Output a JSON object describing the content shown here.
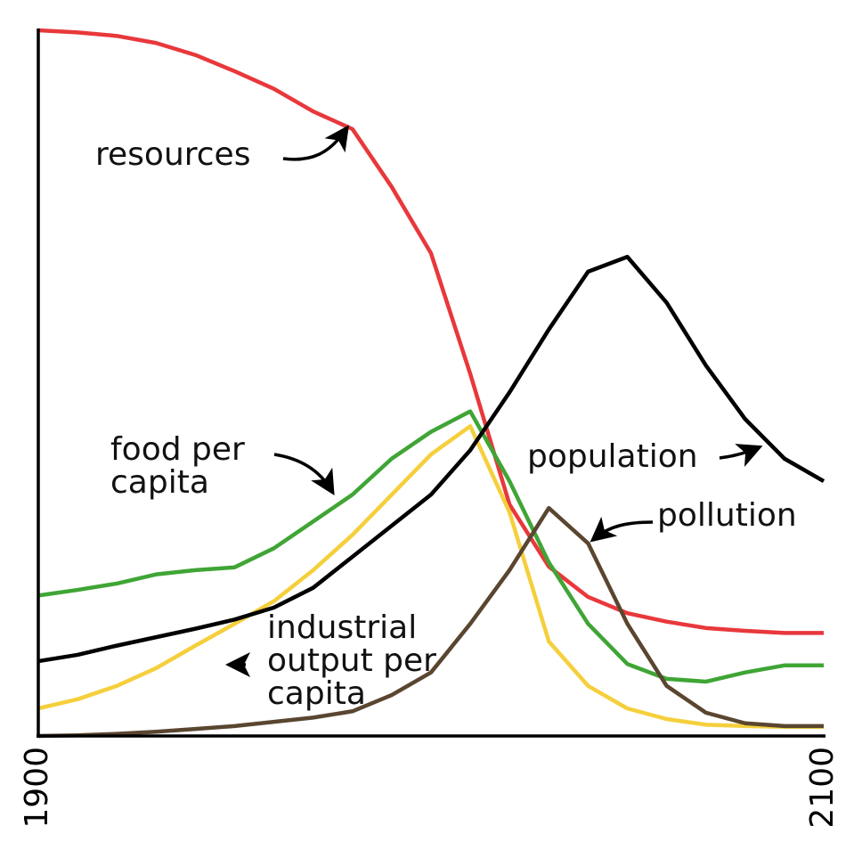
{
  "chart_data": {
    "type": "line",
    "x": [
      1900,
      1910,
      1920,
      1930,
      1940,
      1950,
      1960,
      1970,
      1980,
      1990,
      2000,
      2010,
      2020,
      2030,
      2040,
      2050,
      2060,
      2070,
      2080,
      2090,
      2100
    ],
    "xlim": [
      1900,
      2100
    ],
    "xticks": [
      1900,
      2100
    ],
    "ylim": [
      0,
      100
    ],
    "series": [
      {
        "name": "resources",
        "color": "#e8383b",
        "values": [
          100,
          99.7,
          99.2,
          98.2,
          96.5,
          94.2,
          91.7,
          88.5,
          86,
          77.8,
          68.4,
          51.3,
          32.8,
          24,
          19.7,
          17.4,
          16.2,
          15.3,
          14.9,
          14.6,
          14.6
        ]
      },
      {
        "name": "food per capita",
        "color": "#3fa535",
        "values": [
          19.9,
          20.7,
          21.6,
          22.9,
          23.5,
          23.9,
          26.6,
          30.4,
          34.2,
          39.3,
          43.1,
          46.0,
          36.1,
          24.6,
          15.9,
          10.2,
          8.1,
          7.7,
          9.0,
          10.0,
          10.0
        ]
      },
      {
        "name": "industrial output per capita",
        "color": "#f5cf3c",
        "values": [
          3.9,
          5.2,
          7.1,
          9.6,
          12.8,
          15.9,
          19.1,
          23.5,
          28.5,
          34.2,
          39.9,
          43.9,
          31.7,
          13.4,
          7.1,
          3.9,
          2.4,
          1.6,
          1.4,
          1.3,
          1.3
        ]
      },
      {
        "name": "pollution",
        "color": "#5a4630",
        "values": [
          0,
          0.1,
          0.3,
          0.6,
          1.0,
          1.4,
          2.0,
          2.6,
          3.5,
          5.8,
          9.0,
          15.9,
          23.5,
          32.3,
          27.3,
          15.9,
          7.1,
          3.3,
          1.8,
          1.4,
          1.4
        ]
      },
      {
        "name": "population",
        "color": "#000000",
        "values": [
          10.6,
          11.5,
          12.8,
          14.0,
          15.2,
          16.5,
          18.2,
          21.0,
          25.4,
          29.8,
          34.2,
          40.5,
          48.7,
          57.6,
          65.8,
          67.9,
          61.4,
          52.5,
          44.9,
          39.3,
          36.1
        ]
      }
    ]
  }
}
